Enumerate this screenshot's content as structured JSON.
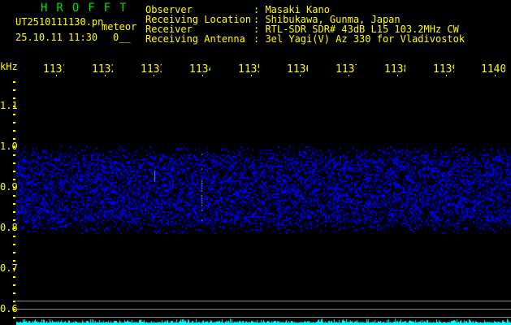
{
  "header": {
    "app_title": "HROFFT",
    "filename": "UT2510111130.pn",
    "mode": "meteor",
    "datetime": "25.10.11 11:30",
    "count": "0__",
    "fields": [
      {
        "label": "Observer",
        "value": ": Masaki Kano"
      },
      {
        "label": "Receiving Location",
        "value": ": Shibukawa, Gunma, Japan"
      },
      {
        "label": "Receiver",
        "value": ": RTL-SDR SDR# 43dB L15 103.2MHz CW"
      },
      {
        "label": "Receiving Antenna",
        "value": ": 3el Yagi(V) Az 330 for Vladivostok"
      }
    ]
  },
  "axis": {
    "unit": "kHz",
    "freq_labels": [
      "1131",
      "1132",
      "1133",
      "1134",
      "1135",
      "1136",
      "1137",
      "1138",
      "1139",
      "1140"
    ],
    "y_labels": [
      "1.1",
      "1.0",
      "0.9",
      "0.8",
      "0.7",
      "0.6"
    ]
  },
  "colors": {
    "text": "#ffff00",
    "title": "#00e000",
    "noise": "#0000ff",
    "baseline": "#00ffff",
    "grid": "#888888"
  }
}
